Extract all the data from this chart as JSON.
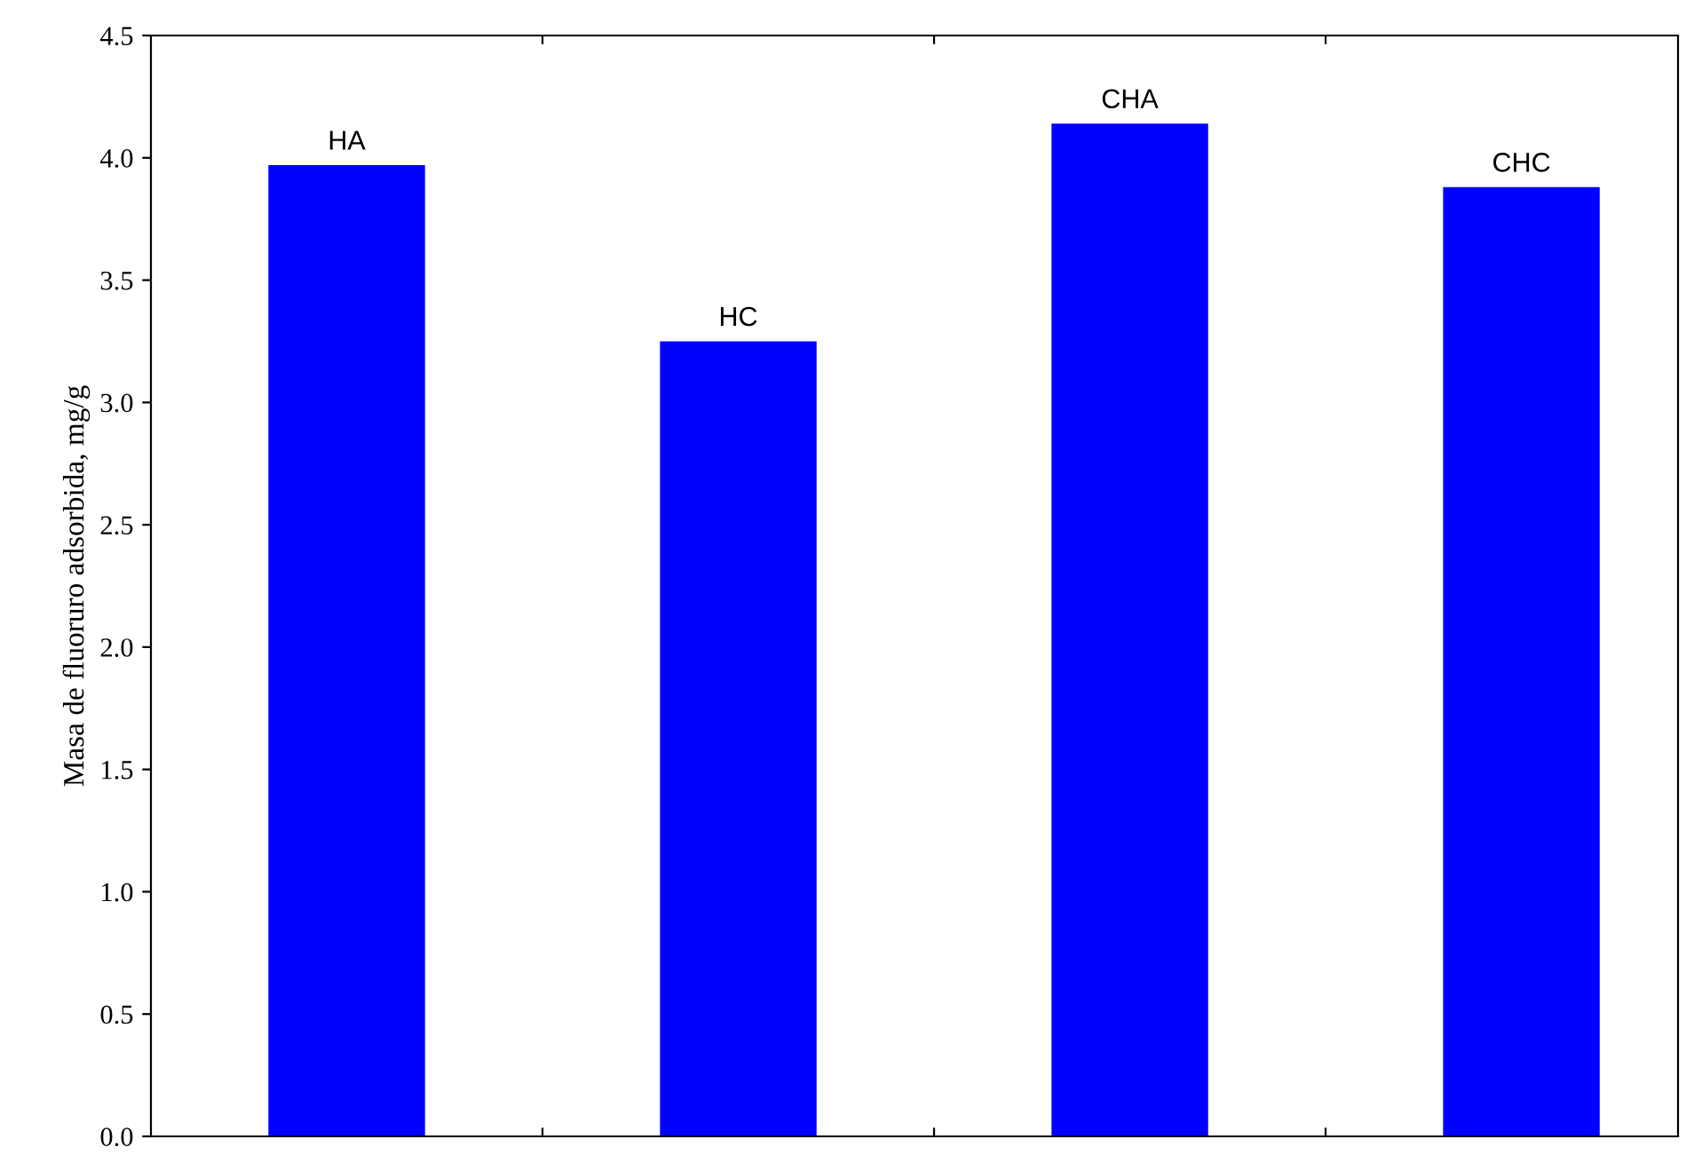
{
  "chart_data": {
    "type": "bar",
    "ylabel": "Masa de fluoruro adsorbida, mg/g",
    "categories": [
      "HA",
      "HC",
      "CHA",
      "CHC"
    ],
    "values": [
      3.97,
      3.25,
      4.14,
      3.88
    ],
    "color": "#0000ff",
    "ylim": [
      0,
      4.5
    ],
    "yticks": [
      {
        "value": 0,
        "label": "0.0"
      },
      0.5,
      {
        "value": 1,
        "label": "1.0"
      },
      1.5,
      {
        "value": 2,
        "label": "2.0"
      },
      2.5,
      {
        "value": 3,
        "label": "3.0"
      },
      3.5,
      {
        "value": 4,
        "label": "4.0"
      },
      4.5
    ],
    "grid": false,
    "tick_labels": "y"
  }
}
